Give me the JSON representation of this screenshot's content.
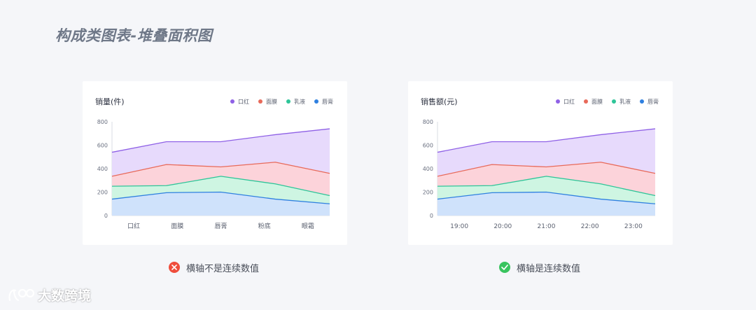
{
  "page": {
    "title": "构成类图表-堆叠面积图"
  },
  "colors": {
    "口红": "#8f61e6",
    "面膜": "#e86a5a",
    "乳液": "#2ec598",
    "唇膏": "#2f80e0"
  },
  "chart_data": [
    {
      "type": "area",
      "stacked": true,
      "title": "销量(件)",
      "categories": [
        "口红",
        "面膜",
        "唇膏",
        "粉底",
        "眼霜"
      ],
      "ylim": [
        0,
        800
      ],
      "yticks": [
        0,
        200,
        400,
        600,
        800
      ],
      "legend_position": "top-right",
      "series": [
        {
          "name": "唇膏",
          "color": "#2f80e0",
          "fill": "#cfe2fb",
          "values": [
            140,
            195,
            200,
            140,
            100
          ]
        },
        {
          "name": "乳液",
          "color": "#2ec598",
          "fill": "#cef5e2",
          "values": [
            110,
            60,
            135,
            130,
            70
          ]
        },
        {
          "name": "面膜",
          "color": "#e86a5a",
          "fill": "#fcd3da",
          "values": [
            85,
            180,
            80,
            185,
            190
          ]
        },
        {
          "name": "口红",
          "color": "#8f61e6",
          "fill": "#e7dafc",
          "values": [
            205,
            195,
            215,
            235,
            380
          ]
        }
      ],
      "legend_order": [
        "口红",
        "面膜",
        "乳液",
        "唇膏"
      ]
    },
    {
      "type": "area",
      "stacked": true,
      "title": "销售额(元)",
      "categories": [
        "19:00",
        "20:00",
        "21:00",
        "22:00",
        "23:00"
      ],
      "ylim": [
        0,
        800
      ],
      "yticks": [
        0,
        200,
        400,
        600,
        800
      ],
      "legend_position": "top-right",
      "series": [
        {
          "name": "唇膏",
          "color": "#2f80e0",
          "fill": "#cfe2fb",
          "values": [
            140,
            195,
            200,
            140,
            100
          ]
        },
        {
          "name": "乳液",
          "color": "#2ec598",
          "fill": "#cef5e2",
          "values": [
            110,
            60,
            135,
            130,
            70
          ]
        },
        {
          "name": "面膜",
          "color": "#e86a5a",
          "fill": "#fcd3da",
          "values": [
            85,
            180,
            80,
            185,
            190
          ]
        },
        {
          "name": "口红",
          "color": "#8f61e6",
          "fill": "#e7dafc",
          "values": [
            205,
            195,
            215,
            235,
            380
          ]
        }
      ],
      "legend_order": [
        "口红",
        "面膜",
        "乳液",
        "唇膏"
      ]
    }
  ],
  "verdicts": [
    {
      "text": "横轴不是连续数值",
      "status": "wrong",
      "color": "#ef4d3c",
      "icon": "close-icon"
    },
    {
      "text": "横轴是连续数值",
      "status": "correct",
      "color": "#39c45f",
      "icon": "check-icon"
    }
  ],
  "watermark": {
    "text": "大数跨境",
    "icon": "logo-icon"
  }
}
